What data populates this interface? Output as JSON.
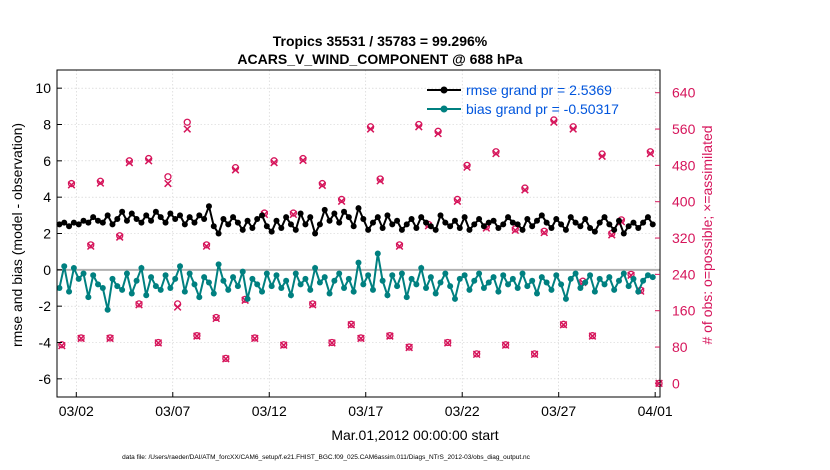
{
  "chart_data": {
    "type": "line",
    "title_line1": "Tropics 35531 / 35783 = 99.296%",
    "title_line2": "ACARS_V_WIND_COMPONENT @ 688 hPa",
    "xlabel": "Mar.01,2012 00:00:00 start",
    "ylabel_left": "rmse and bias (model - observation)",
    "ylabel_right": "# of obs: o=possible; ×=assimilated",
    "footer": "data file: /Users/raeder/DAI/ATM_forcXX/CAM6_setup/f.e21.FHIST_BGC.f09_025.CAM6assim.011/Diags_NTrS_2012-03/obs_diag_output.nc",
    "xlim": [
      0.5,
      31.75
    ],
    "ylim_left": [
      -7,
      11
    ],
    "ylim_right": [
      -30,
      690
    ],
    "x_tick_values": [
      1.5,
      6.5,
      11.5,
      16.5,
      21.5,
      26.5,
      31.5
    ],
    "x_tick_labels": [
      "03/02",
      "03/07",
      "03/12",
      "03/17",
      "03/22",
      "03/27",
      "04/01"
    ],
    "y_left_ticks": [
      -6,
      -4,
      -2,
      0,
      2,
      4,
      6,
      8,
      10
    ],
    "y_right_ticks": [
      0,
      80,
      160,
      240,
      320,
      400,
      480,
      560,
      640
    ],
    "zero_line": 0,
    "legend": {
      "position": "top-right",
      "rmse_label": "rmse grand pr = 2.5369",
      "bias_label": "bias grand pr = -0.50317"
    },
    "colors": {
      "rmse": "#000000",
      "bias": "#008080",
      "obs": "#D6155B",
      "legend_text": "#0055DD",
      "right_axis": "#D6155B",
      "zero_line": "#B0B0B0",
      "grid": "#CCCCCC"
    },
    "series": [
      {
        "name": "rmse",
        "x": [
          0.625,
          0.875,
          1.125,
          1.375,
          1.625,
          1.875,
          2.125,
          2.375,
          2.625,
          2.875,
          3.125,
          3.375,
          3.625,
          3.875,
          4.125,
          4.375,
          4.625,
          4.875,
          5.125,
          5.375,
          5.625,
          5.875,
          6.125,
          6.375,
          6.625,
          6.875,
          7.125,
          7.375,
          7.625,
          7.875,
          8.125,
          8.375,
          8.625,
          8.875,
          9.125,
          9.375,
          9.625,
          9.875,
          10.125,
          10.375,
          10.625,
          10.875,
          11.125,
          11.375,
          11.625,
          11.875,
          12.125,
          12.375,
          12.625,
          12.875,
          13.125,
          13.375,
          13.625,
          13.875,
          14.125,
          14.375,
          14.625,
          14.875,
          15.125,
          15.375,
          15.625,
          15.875,
          16.125,
          16.375,
          16.625,
          16.875,
          17.125,
          17.375,
          17.625,
          17.875,
          18.125,
          18.375,
          18.625,
          18.875,
          19.125,
          19.375,
          19.625,
          19.875,
          20.125,
          20.375,
          20.625,
          20.875,
          21.125,
          21.375,
          21.625,
          21.875,
          22.125,
          22.375,
          22.625,
          22.875,
          23.125,
          23.375,
          23.625,
          23.875,
          24.125,
          24.375,
          24.625,
          24.875,
          25.125,
          25.375,
          25.625,
          25.875,
          26.125,
          26.375,
          26.625,
          26.875,
          27.125,
          27.375,
          27.625,
          27.875,
          28.125,
          28.375,
          28.625,
          28.875,
          29.125,
          29.375,
          29.625,
          29.875,
          30.125,
          30.375,
          30.625,
          30.875,
          31.125,
          31.375
        ],
        "values": [
          2.5,
          2.6,
          2.4,
          2.6,
          2.5,
          2.7,
          2.6,
          2.9,
          2.7,
          2.6,
          3.0,
          2.5,
          2.8,
          3.2,
          2.7,
          3.1,
          2.8,
          2.6,
          3.0,
          2.7,
          3.2,
          2.9,
          2.6,
          3.1,
          2.8,
          3.0,
          2.5,
          2.9,
          2.6,
          3.0,
          2.8,
          3.5,
          2.4,
          2.0,
          2.8,
          2.5,
          2.9,
          2.6,
          2.2,
          2.7,
          2.3,
          2.8,
          3.0,
          2.4,
          2.1,
          2.7,
          2.3,
          2.9,
          2.5,
          2.2,
          3.1,
          2.5,
          2.9,
          2.0,
          2.5,
          3.3,
          2.7,
          3.1,
          2.6,
          3.2,
          2.9,
          2.4,
          3.4,
          2.8,
          2.2,
          2.6,
          2.9,
          2.3,
          3.0,
          2.5,
          2.7,
          2.2,
          2.5,
          2.8,
          2.3,
          2.9,
          2.6,
          2.4,
          2.2,
          3.0,
          2.6,
          2.4,
          2.7,
          2.3,
          2.9,
          2.2,
          2.5,
          2.8,
          2.4,
          2.6,
          2.7,
          2.3,
          2.5,
          2.9,
          2.6,
          2.5,
          2.2,
          2.8,
          2.4,
          2.7,
          3.0,
          2.6,
          2.3,
          2.8,
          2.5,
          2.2,
          2.9,
          2.6,
          2.4,
          2.8,
          2.3,
          2.1,
          2.6,
          2.9,
          2.5,
          2.2,
          2.7,
          2.0,
          2.4,
          2.6,
          2.3,
          2.6,
          2.9,
          2.5
        ]
      },
      {
        "name": "bias",
        "x": [
          0.625,
          0.875,
          1.125,
          1.375,
          1.625,
          1.875,
          2.125,
          2.375,
          2.625,
          2.875,
          3.125,
          3.375,
          3.625,
          3.875,
          4.125,
          4.375,
          4.625,
          4.875,
          5.125,
          5.375,
          5.625,
          5.875,
          6.125,
          6.375,
          6.625,
          6.875,
          7.125,
          7.375,
          7.625,
          7.875,
          8.125,
          8.375,
          8.625,
          8.875,
          9.125,
          9.375,
          9.625,
          9.875,
          10.125,
          10.375,
          10.625,
          10.875,
          11.125,
          11.375,
          11.625,
          11.875,
          12.125,
          12.375,
          12.625,
          12.875,
          13.125,
          13.375,
          13.625,
          13.875,
          14.125,
          14.375,
          14.625,
          14.875,
          15.125,
          15.375,
          15.625,
          15.875,
          16.125,
          16.375,
          16.625,
          16.875,
          17.125,
          17.375,
          17.625,
          17.875,
          18.125,
          18.375,
          18.625,
          18.875,
          19.125,
          19.375,
          19.625,
          19.875,
          20.125,
          20.375,
          20.625,
          20.875,
          21.125,
          21.375,
          21.625,
          21.875,
          22.125,
          22.375,
          22.625,
          22.875,
          23.125,
          23.375,
          23.625,
          23.875,
          24.125,
          24.375,
          24.625,
          24.875,
          25.125,
          25.375,
          25.625,
          25.875,
          26.125,
          26.375,
          26.625,
          26.875,
          27.125,
          27.375,
          27.625,
          27.875,
          28.125,
          28.375,
          28.625,
          28.875,
          29.125,
          29.375,
          29.625,
          29.875,
          30.125,
          30.375,
          30.625,
          30.875,
          31.125,
          31.375
        ],
        "values": [
          -1.0,
          0.2,
          -1.2,
          0.1,
          -0.5,
          -0.2,
          -1.5,
          -0.3,
          -0.8,
          -1.0,
          -2.2,
          -0.5,
          -0.9,
          -1.1,
          -0.2,
          -1.3,
          -0.6,
          0.1,
          -1.4,
          -0.4,
          -0.9,
          -1.1,
          -0.3,
          -1.0,
          -0.5,
          0.2,
          -1.2,
          -0.2,
          -0.8,
          -1.5,
          -0.4,
          -0.7,
          -1.3,
          0.3,
          -0.6,
          -1.1,
          -0.4,
          -0.9,
          -0.1,
          -1.6,
          -0.5,
          -0.8,
          -1.2,
          -0.2,
          -0.9,
          -0.3,
          -1.0,
          -0.6,
          -1.4,
          -0.2,
          -0.8,
          -0.5,
          -1.1,
          0.1,
          -0.7,
          -0.4,
          -1.3,
          -0.6,
          -0.2,
          -1.0,
          -0.5,
          -1.2,
          0.4,
          -0.8,
          -0.3,
          -1.1,
          0.9,
          -0.6,
          -1.4,
          -0.3,
          -0.9,
          -0.2,
          -1.5,
          -0.5,
          -0.8,
          0.1,
          -1.0,
          -0.4,
          -1.3,
          -0.7,
          -0.2,
          -0.9,
          -1.6,
          -0.5,
          -0.3,
          -1.1,
          -0.6,
          -0.2,
          -1.0,
          -0.7,
          -0.4,
          -1.2,
          -0.3,
          -0.8,
          -0.5,
          -1.0,
          -0.2,
          -0.9,
          -0.6,
          -1.3,
          -0.4,
          -0.7,
          -1.1,
          -0.3,
          -0.8,
          -1.6,
          -0.5,
          -0.2,
          -1.0,
          -0.7,
          -0.3,
          -1.2,
          -0.5,
          -0.8,
          -0.4,
          -1.1,
          -0.6,
          -0.2,
          -0.9,
          -0.5,
          -1.2,
          -0.6,
          -0.3,
          -0.4
        ]
      },
      {
        "name": "obs_possible",
        "x": [
          0.75,
          1.25,
          1.75,
          2.25,
          2.75,
          3.25,
          3.75,
          4.25,
          4.75,
          5.25,
          5.75,
          6.25,
          6.75,
          7.25,
          7.75,
          8.25,
          8.75,
          9.25,
          9.75,
          10.25,
          10.75,
          11.25,
          11.75,
          12.25,
          12.75,
          13.25,
          13.75,
          14.25,
          14.75,
          15.25,
          15.75,
          16.25,
          16.75,
          17.25,
          17.75,
          18.25,
          18.75,
          19.25,
          19.75,
          20.25,
          20.75,
          21.25,
          21.75,
          22.25,
          22.75,
          23.25,
          23.75,
          24.25,
          24.75,
          25.25,
          25.75,
          26.25,
          26.75,
          27.25,
          27.75,
          28.25,
          28.75,
          29.25,
          29.75,
          30.25,
          30.75,
          31.25,
          31.7
        ],
        "values": [
          85,
          440,
          100,
          305,
          445,
          100,
          325,
          490,
          175,
          495,
          90,
          455,
          175,
          575,
          105,
          305,
          145,
          55,
          475,
          185,
          100,
          375,
          490,
          85,
          375,
          495,
          175,
          440,
          90,
          405,
          130,
          100,
          565,
          450,
          105,
          305,
          80,
          570,
          350,
          555,
          90,
          405,
          480,
          65,
          345,
          510,
          85,
          340,
          430,
          65,
          335,
          580,
          130,
          565,
          225,
          105,
          505,
          330,
          360,
          240,
          205,
          510,
          0
        ],
        "marker": "circle"
      },
      {
        "name": "obs_assimilated",
        "x": [
          0.75,
          1.25,
          1.75,
          2.25,
          2.75,
          3.25,
          3.75,
          4.25,
          4.75,
          5.25,
          5.75,
          6.25,
          6.75,
          7.25,
          7.75,
          8.25,
          8.75,
          9.25,
          9.75,
          10.25,
          10.75,
          11.25,
          11.75,
          12.25,
          12.75,
          13.25,
          13.75,
          14.25,
          14.75,
          15.25,
          15.75,
          16.25,
          16.75,
          17.25,
          17.75,
          18.25,
          18.75,
          19.25,
          19.75,
          20.25,
          20.75,
          21.25,
          21.75,
          22.25,
          22.75,
          23.25,
          23.75,
          24.25,
          24.75,
          25.25,
          25.75,
          26.25,
          26.75,
          27.25,
          27.75,
          28.25,
          28.75,
          29.25,
          29.75,
          30.25,
          30.75,
          31.25,
          31.7
        ],
        "values": [
          83,
          437,
          99,
          302,
          441,
          99,
          322,
          486,
          173,
          490,
          89,
          440,
          168,
          560,
          104,
          302,
          143,
          54,
          470,
          183,
          99,
          372,
          486,
          84,
          372,
          491,
          173,
          436,
          89,
          401,
          129,
          99,
          560,
          446,
          104,
          302,
          79,
          565,
          347,
          550,
          89,
          401,
          476,
          64,
          342,
          506,
          84,
          337,
          426,
          64,
          332,
          575,
          129,
          560,
          222,
          104,
          500,
          327,
          356,
          238,
          203,
          506,
          0
        ],
        "marker": "x"
      }
    ]
  }
}
